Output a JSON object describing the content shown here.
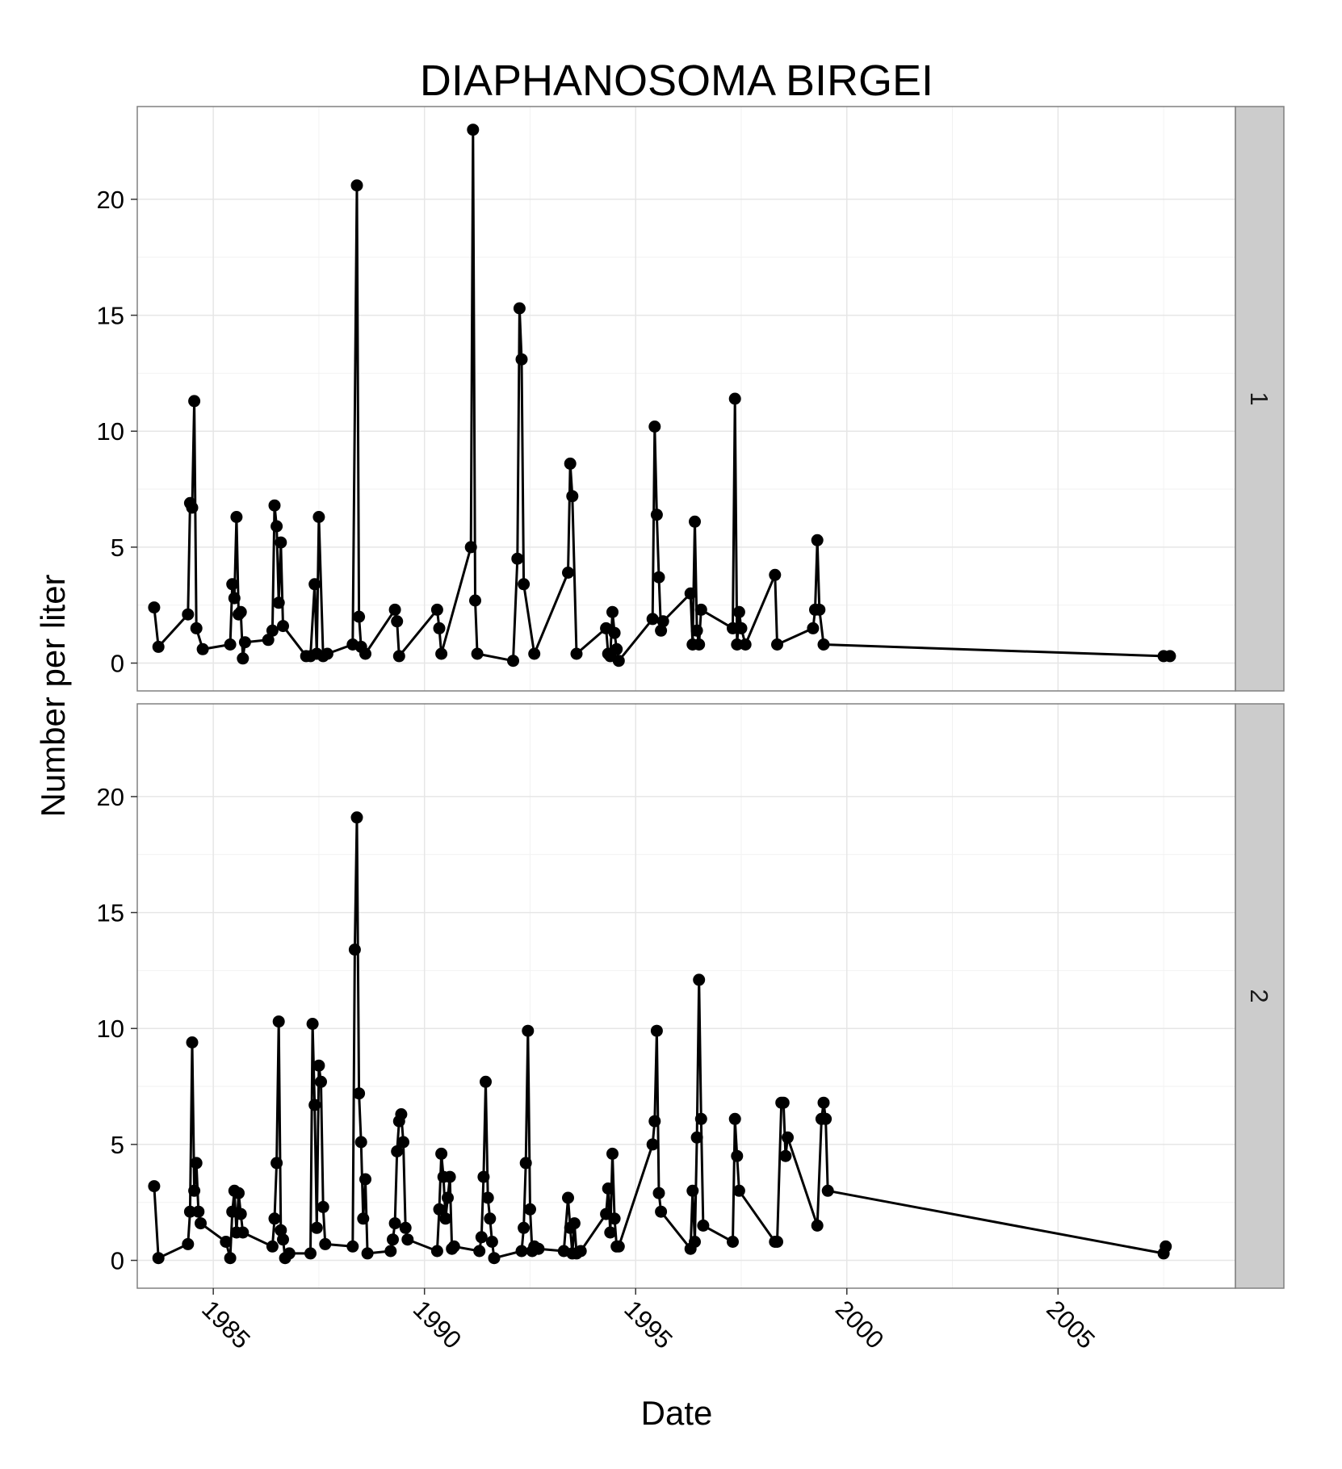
{
  "chart_data": {
    "type": "line",
    "title": "DIAPHANOSOMA BIRGEI",
    "xlabel": "Date",
    "ylabel": "Number per liter",
    "xlim": [
      1983.2,
      2009.2
    ],
    "ylim": [
      -1.2,
      24.0
    ],
    "x_ticks": [
      1985,
      1990,
      1995,
      2000,
      2005
    ],
    "x_tick_labels": [
      "1985",
      "1990",
      "1995",
      "2000",
      "2005"
    ],
    "y_ticks": [
      0,
      5,
      10,
      15,
      20
    ],
    "y_tick_labels": [
      "0",
      "5",
      "10",
      "15",
      "20"
    ],
    "grid": true,
    "facets": [
      {
        "label": "1",
        "points": [
          [
            1983.6,
            2.4
          ],
          [
            1983.7,
            0.7
          ],
          [
            1984.4,
            2.1
          ],
          [
            1984.45,
            6.9
          ],
          [
            1984.5,
            6.7
          ],
          [
            1984.55,
            11.3
          ],
          [
            1984.6,
            1.5
          ],
          [
            1984.75,
            0.6
          ],
          [
            1985.4,
            0.8
          ],
          [
            1985.45,
            3.4
          ],
          [
            1985.5,
            2.8
          ],
          [
            1985.55,
            6.3
          ],
          [
            1985.6,
            2.1
          ],
          [
            1985.65,
            2.2
          ],
          [
            1985.7,
            0.2
          ],
          [
            1985.75,
            0.9
          ],
          [
            1986.3,
            1.0
          ],
          [
            1986.4,
            1.4
          ],
          [
            1986.45,
            6.8
          ],
          [
            1986.5,
            5.9
          ],
          [
            1986.55,
            2.6
          ],
          [
            1986.6,
            5.2
          ],
          [
            1986.65,
            1.6
          ],
          [
            1987.2,
            0.3
          ],
          [
            1987.3,
            0.3
          ],
          [
            1987.4,
            3.4
          ],
          [
            1987.45,
            0.4
          ],
          [
            1987.5,
            6.3
          ],
          [
            1987.6,
            0.3
          ],
          [
            1987.7,
            0.4
          ],
          [
            1988.3,
            0.8
          ],
          [
            1988.4,
            20.6
          ],
          [
            1988.45,
            2.0
          ],
          [
            1988.5,
            0.7
          ],
          [
            1988.6,
            0.4
          ],
          [
            1989.3,
            2.3
          ],
          [
            1989.35,
            1.8
          ],
          [
            1989.4,
            0.3
          ],
          [
            1990.3,
            2.3
          ],
          [
            1990.35,
            1.5
          ],
          [
            1990.4,
            0.4
          ],
          [
            1991.1,
            5.0
          ],
          [
            1991.15,
            23.0
          ],
          [
            1991.2,
            2.7
          ],
          [
            1991.25,
            0.4
          ],
          [
            1992.1,
            0.1
          ],
          [
            1992.2,
            4.5
          ],
          [
            1992.25,
            15.3
          ],
          [
            1992.3,
            13.1
          ],
          [
            1992.35,
            3.4
          ],
          [
            1992.6,
            0.4
          ],
          [
            1993.4,
            3.9
          ],
          [
            1993.45,
            8.6
          ],
          [
            1993.5,
            7.2
          ],
          [
            1993.6,
            0.4
          ],
          [
            1994.3,
            1.5
          ],
          [
            1994.35,
            0.4
          ],
          [
            1994.4,
            0.3
          ],
          [
            1994.45,
            2.2
          ],
          [
            1994.5,
            1.3
          ],
          [
            1994.55,
            0.6
          ],
          [
            1994.6,
            0.1
          ],
          [
            1995.4,
            1.9
          ],
          [
            1995.45,
            10.2
          ],
          [
            1995.5,
            6.4
          ],
          [
            1995.55,
            3.7
          ],
          [
            1995.6,
            1.4
          ],
          [
            1995.65,
            1.8
          ],
          [
            1996.3,
            3.0
          ],
          [
            1996.35,
            0.8
          ],
          [
            1996.4,
            6.1
          ],
          [
            1996.45,
            1.4
          ],
          [
            1996.5,
            0.8
          ],
          [
            1996.55,
            2.3
          ],
          [
            1997.3,
            1.5
          ],
          [
            1997.35,
            11.4
          ],
          [
            1997.4,
            0.8
          ],
          [
            1997.45,
            2.2
          ],
          [
            1997.5,
            1.5
          ],
          [
            1997.6,
            0.8
          ],
          [
            1998.3,
            3.8
          ],
          [
            1998.35,
            0.8
          ],
          [
            1999.2,
            1.5
          ],
          [
            1999.25,
            2.3
          ],
          [
            1999.3,
            5.3
          ],
          [
            1999.35,
            2.3
          ],
          [
            1999.45,
            0.8
          ],
          [
            2007.5,
            0.3
          ],
          [
            2007.65,
            0.3
          ]
        ]
      },
      {
        "label": "2",
        "points": [
          [
            1983.6,
            3.2
          ],
          [
            1983.7,
            0.1
          ],
          [
            1984.4,
            0.7
          ],
          [
            1984.45,
            2.1
          ],
          [
            1984.5,
            9.4
          ],
          [
            1984.55,
            3.0
          ],
          [
            1984.6,
            4.2
          ],
          [
            1984.65,
            2.1
          ],
          [
            1984.7,
            1.6
          ],
          [
            1985.3,
            0.8
          ],
          [
            1985.4,
            0.1
          ],
          [
            1985.45,
            2.1
          ],
          [
            1985.5,
            3.0
          ],
          [
            1985.55,
            1.2
          ],
          [
            1985.6,
            2.9
          ],
          [
            1985.65,
            2.0
          ],
          [
            1985.7,
            1.2
          ],
          [
            1986.4,
            0.6
          ],
          [
            1986.45,
            1.8
          ],
          [
            1986.5,
            4.2
          ],
          [
            1986.55,
            10.3
          ],
          [
            1986.6,
            1.3
          ],
          [
            1986.65,
            0.9
          ],
          [
            1986.7,
            0.1
          ],
          [
            1986.8,
            0.3
          ],
          [
            1987.3,
            0.3
          ],
          [
            1987.35,
            10.2
          ],
          [
            1987.4,
            6.7
          ],
          [
            1987.45,
            1.4
          ],
          [
            1987.5,
            8.4
          ],
          [
            1987.55,
            7.7
          ],
          [
            1987.6,
            2.3
          ],
          [
            1987.65,
            0.7
          ],
          [
            1988.3,
            0.6
          ],
          [
            1988.35,
            13.4
          ],
          [
            1988.4,
            19.1
          ],
          [
            1988.45,
            7.2
          ],
          [
            1988.5,
            5.1
          ],
          [
            1988.55,
            1.8
          ],
          [
            1988.6,
            3.5
          ],
          [
            1988.65,
            0.3
          ],
          [
            1989.2,
            0.4
          ],
          [
            1989.25,
            0.9
          ],
          [
            1989.3,
            1.6
          ],
          [
            1989.35,
            4.7
          ],
          [
            1989.4,
            6.0
          ],
          [
            1989.45,
            6.3
          ],
          [
            1989.5,
            5.1
          ],
          [
            1989.55,
            1.4
          ],
          [
            1989.6,
            0.9
          ],
          [
            1990.3,
            0.4
          ],
          [
            1990.35,
            2.2
          ],
          [
            1990.4,
            4.6
          ],
          [
            1990.45,
            3.6
          ],
          [
            1990.5,
            1.8
          ],
          [
            1990.55,
            2.7
          ],
          [
            1990.6,
            3.6
          ],
          [
            1990.65,
            0.5
          ],
          [
            1990.7,
            0.6
          ],
          [
            1991.3,
            0.4
          ],
          [
            1991.35,
            1.0
          ],
          [
            1991.4,
            3.6
          ],
          [
            1991.45,
            7.7
          ],
          [
            1991.5,
            2.7
          ],
          [
            1991.55,
            1.8
          ],
          [
            1991.6,
            0.8
          ],
          [
            1991.65,
            0.1
          ],
          [
            1992.3,
            0.4
          ],
          [
            1992.35,
            1.4
          ],
          [
            1992.4,
            4.2
          ],
          [
            1992.45,
            9.9
          ],
          [
            1992.5,
            2.2
          ],
          [
            1992.55,
            0.4
          ],
          [
            1992.6,
            0.6
          ],
          [
            1992.7,
            0.5
          ],
          [
            1993.3,
            0.4
          ],
          [
            1993.4,
            2.7
          ],
          [
            1993.45,
            1.4
          ],
          [
            1993.5,
            0.3
          ],
          [
            1993.55,
            1.6
          ],
          [
            1993.6,
            0.3
          ],
          [
            1993.7,
            0.4
          ],
          [
            1994.3,
            2.0
          ],
          [
            1994.35,
            3.1
          ],
          [
            1994.4,
            1.2
          ],
          [
            1994.45,
            4.6
          ],
          [
            1994.5,
            1.8
          ],
          [
            1994.55,
            0.6
          ],
          [
            1994.6,
            0.6
          ],
          [
            1995.4,
            5.0
          ],
          [
            1995.45,
            6.0
          ],
          [
            1995.5,
            9.9
          ],
          [
            1995.55,
            2.9
          ],
          [
            1995.6,
            2.1
          ],
          [
            1996.3,
            0.5
          ],
          [
            1996.35,
            3.0
          ],
          [
            1996.4,
            0.8
          ],
          [
            1996.45,
            5.3
          ],
          [
            1996.5,
            12.1
          ],
          [
            1996.55,
            6.1
          ],
          [
            1996.6,
            1.5
          ],
          [
            1997.3,
            0.8
          ],
          [
            1997.35,
            6.1
          ],
          [
            1997.4,
            4.5
          ],
          [
            1997.45,
            3.0
          ],
          [
            1998.3,
            0.8
          ],
          [
            1998.35,
            0.8
          ],
          [
            1998.45,
            6.8
          ],
          [
            1998.5,
            6.8
          ],
          [
            1998.55,
            4.5
          ],
          [
            1998.6,
            5.3
          ],
          [
            1999.3,
            1.5
          ],
          [
            1999.4,
            6.1
          ],
          [
            1999.45,
            6.8
          ],
          [
            1999.5,
            6.1
          ],
          [
            1999.55,
            3.0
          ],
          [
            2007.5,
            0.3
          ],
          [
            2007.55,
            0.6
          ]
        ]
      }
    ]
  }
}
